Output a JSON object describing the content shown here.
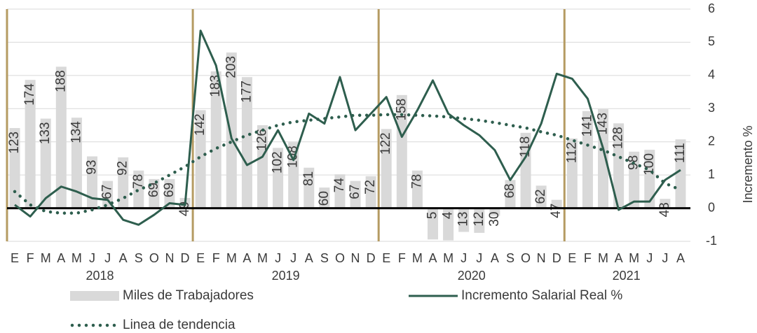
{
  "chart_data": {
    "type": "combo",
    "category_groups": [
      {
        "label": "2018",
        "categories": [
          "E",
          "F",
          "M",
          "A",
          "M",
          "J",
          "J",
          "A",
          "S",
          "O",
          "N",
          "D"
        ]
      },
      {
        "label": "2019",
        "categories": [
          "E",
          "F",
          "M",
          "A",
          "M",
          "J",
          "J",
          "A",
          "S",
          "O",
          "N",
          "D"
        ]
      },
      {
        "label": "2020",
        "categories": [
          "E",
          "F",
          "M",
          "A",
          "M",
          "J",
          "J",
          "A",
          "S",
          "O",
          "N",
          "D"
        ]
      },
      {
        "label": "2021",
        "categories": [
          "E",
          "F",
          "M",
          "A",
          "M",
          "J",
          "J",
          "A"
        ]
      }
    ],
    "series": [
      {
        "name": "Miles de Trabajadores",
        "type": "bar",
        "axis": "y2",
        "color": "#d9d9d9",
        "values": [
          123,
          174,
          133,
          188,
          134,
          93,
          67,
          92,
          78,
          69,
          69,
          49,
          142,
          183,
          203,
          177,
          126,
          102,
          108,
          81,
          60,
          74,
          67,
          72,
          122,
          158,
          78,
          5,
          4,
          13,
          12,
          30,
          68,
          118,
          62,
          47,
          112,
          141,
          143,
          128,
          98,
          100,
          48,
          111
        ]
      },
      {
        "name": "Incremento Salarial Real %",
        "type": "line",
        "color": "#2e5e4e",
        "values": [
          0.1,
          -0.25,
          0.3,
          0.65,
          0.5,
          0.3,
          0.25,
          -0.35,
          -0.5,
          -0.2,
          0.15,
          0.1,
          5.35,
          4.3,
          2.1,
          1.3,
          1.55,
          2.35,
          1.45,
          2.85,
          2.55,
          3.95,
          2.35,
          2.85,
          3.35,
          2.15,
          2.95,
          3.85,
          2.85,
          2.5,
          2.2,
          1.75,
          0.85,
          1.55,
          2.55,
          4.05,
          3.9,
          3.3,
          1.8,
          -0.05,
          0.2,
          0.2,
          0.85,
          1.15
        ]
      },
      {
        "name": "Linea de tendencia",
        "type": "dotted-line",
        "color": "#2e5e4e",
        "values": [
          0.5,
          0.1,
          -0.1,
          -0.15,
          -0.15,
          -0.05,
          0.1,
          0.3,
          0.55,
          0.75,
          1.0,
          1.25,
          1.55,
          1.8,
          2.0,
          2.2,
          2.35,
          2.5,
          2.6,
          2.65,
          2.7,
          2.75,
          2.8,
          2.8,
          2.82,
          2.82,
          2.8,
          2.78,
          2.75,
          2.7,
          2.65,
          2.58,
          2.5,
          2.42,
          2.3,
          2.2,
          2.05,
          1.9,
          1.75,
          1.55,
          1.35,
          1.15,
          0.75,
          0.55
        ]
      }
    ],
    "ylabel": "Incremento %",
    "ylim": [
      -1,
      6
    ],
    "yticks": [
      -1,
      0,
      1,
      2,
      3,
      4,
      5,
      6
    ],
    "y2lim": [
      3,
      249
    ],
    "grid": true
  }
}
